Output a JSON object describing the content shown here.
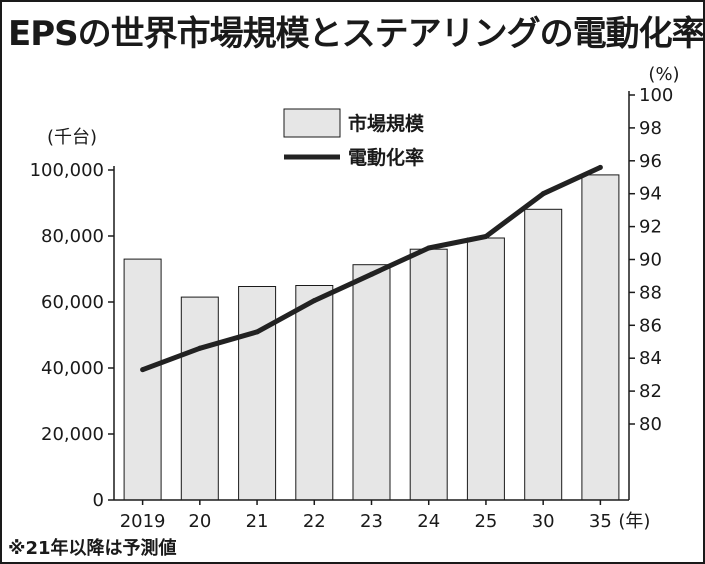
{
  "title": "EPSの世界市場規模とステアリングの電動化率",
  "note": "※21年以降は予測値",
  "chart_data": {
    "type": "bar",
    "categories": [
      "2019",
      "20",
      "21",
      "22",
      "23",
      "24",
      "25",
      "30",
      "35"
    ],
    "x_suffix": "(年)",
    "series": [
      {
        "name": "市場規模",
        "type": "bar",
        "axis": "left",
        "values": [
          73000,
          61500,
          64700,
          65000,
          71300,
          76000,
          79400,
          88100,
          98500
        ],
        "color": "#e6e6e6"
      },
      {
        "name": "電動化率",
        "type": "line",
        "axis": "right",
        "values": [
          83.3,
          84.6,
          85.6,
          87.5,
          89.1,
          90.7,
          91.4,
          94.0,
          95.6
        ],
        "color": "#222222"
      }
    ],
    "y_left": {
      "unit": "(千台)",
      "ylim": [
        0,
        100000
      ],
      "ticks": [
        0,
        20000,
        40000,
        60000,
        80000,
        100000
      ],
      "tick_labels": [
        "0",
        "20,000",
        "40,000",
        "60,000",
        "80,000",
        "100,000"
      ]
    },
    "y_right": {
      "unit": "(%)",
      "ylim": [
        80,
        100
      ],
      "ticks": [
        80,
        82,
        84,
        86,
        88,
        90,
        92,
        94,
        96,
        98,
        100
      ],
      "tick_labels": [
        "80",
        "82",
        "84",
        "86",
        "88",
        "90",
        "92",
        "94",
        "96",
        "98",
        "100"
      ]
    },
    "grid": false,
    "legend": "top-center"
  }
}
